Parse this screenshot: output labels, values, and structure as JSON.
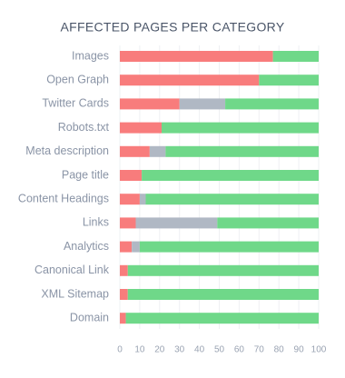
{
  "chart_data": {
    "type": "stacked-bar-horizontal",
    "title": "AFFECTED PAGES PER CATEGORY",
    "categories": [
      "Images",
      "Open Graph",
      "Twitter Cards",
      "Robots.txt",
      "Meta description",
      "Page title",
      "Content Headings",
      "Links",
      "Analytics",
      "Canonical Link",
      "XML Sitemap",
      "Domain"
    ],
    "series": [
      {
        "color": "#f87c7c",
        "values": [
          77,
          70,
          30,
          21,
          15,
          11,
          10,
          8,
          6,
          4,
          4,
          3
        ]
      },
      {
        "color": "#b0b8c4",
        "values": [
          0,
          0,
          23,
          0,
          8,
          0,
          3,
          41,
          4,
          0,
          0,
          0
        ]
      },
      {
        "color": "#6fd889",
        "values": [
          23,
          30,
          47,
          79,
          77,
          89,
          87,
          51,
          90,
          96,
          96,
          97
        ]
      }
    ],
    "xlim": [
      0,
      100
    ],
    "xticks": [
      0,
      10,
      20,
      30,
      40,
      50,
      60,
      70,
      80,
      90,
      100
    ],
    "grid": true
  }
}
